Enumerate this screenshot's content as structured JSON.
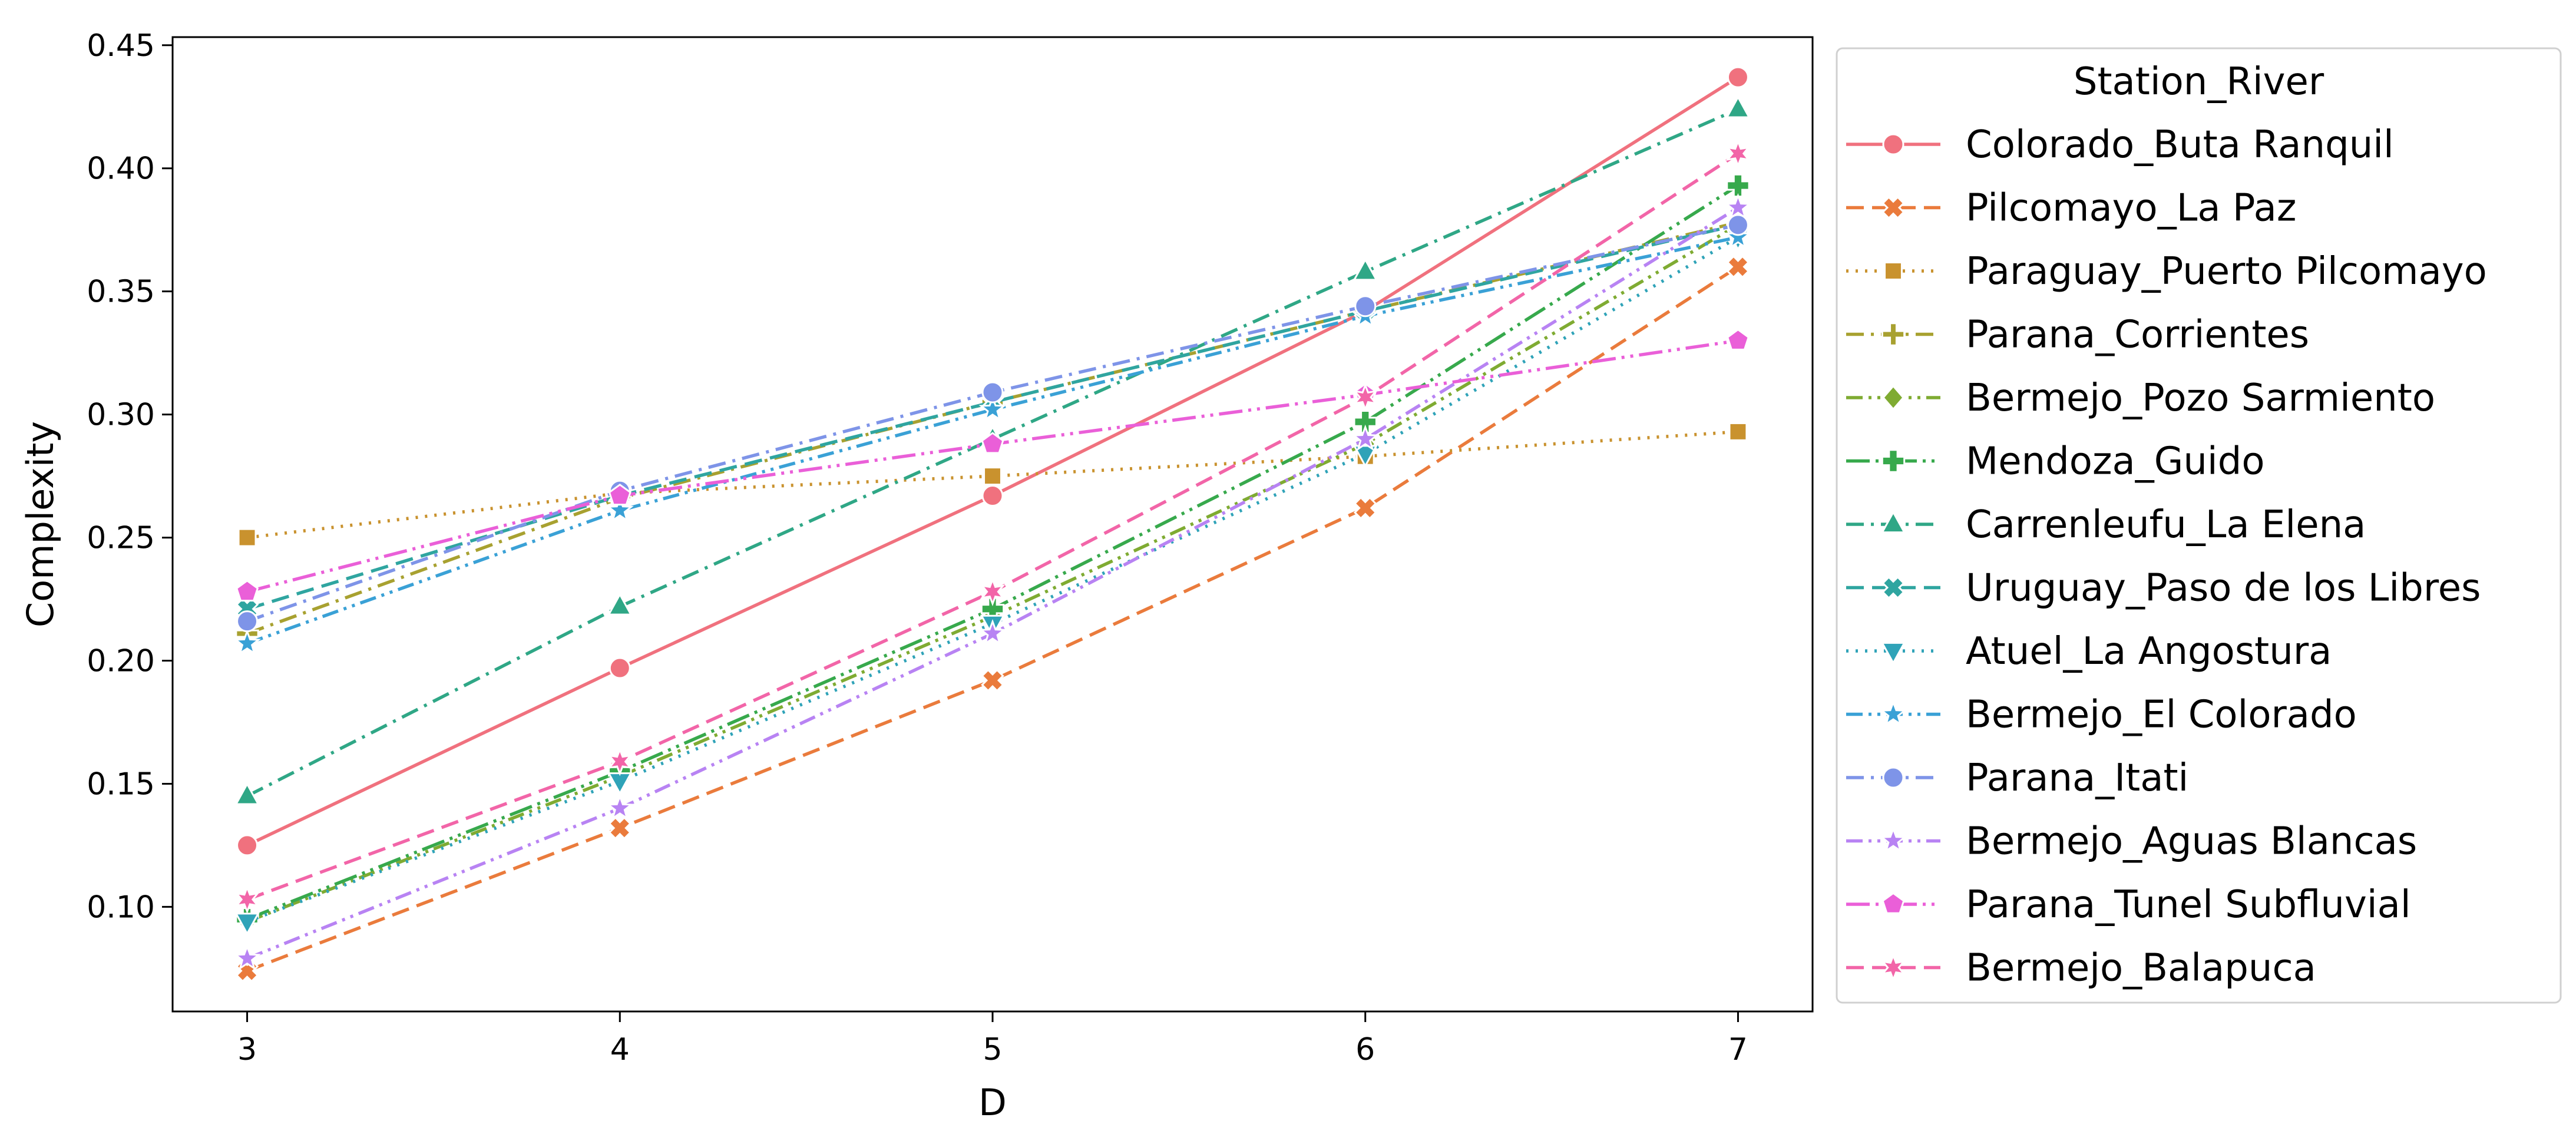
{
  "chart_data": {
    "type": "line",
    "xlabel": "D",
    "ylabel": "Complexity",
    "x": [
      3,
      4,
      5,
      6,
      7
    ],
    "xlim": [
      2.8,
      7.2
    ],
    "ylim": [
      0.0575,
      0.4533
    ],
    "x_ticks": [
      "3",
      "4",
      "5",
      "6",
      "7"
    ],
    "y_ticks": [
      "0.10",
      "0.15",
      "0.20",
      "0.25",
      "0.30",
      "0.35",
      "0.40",
      "0.45"
    ],
    "legend_title": "Station_River",
    "legend_position": "outside-right",
    "grid": false,
    "series": [
      {
        "name": "Colorado_Buta Ranquil",
        "color": "#f0717e",
        "dash": "solid",
        "marker": "circle",
        "values": [
          0.125,
          0.197,
          0.267,
          0.342,
          0.437
        ]
      },
      {
        "name": "Pilcomayo_La Paz",
        "color": "#ea7b3c",
        "dash": "dashed",
        "marker": "x",
        "values": [
          0.074,
          0.132,
          0.192,
          0.262,
          0.36
        ]
      },
      {
        "name": "Paraguay_Puerto Pilcomayo",
        "color": "#c9922e",
        "dash": "dotted",
        "marker": "square",
        "values": [
          0.25,
          0.268,
          0.275,
          0.283,
          0.293
        ]
      },
      {
        "name": "Parana_Corrientes",
        "color": "#a8a130",
        "dash": "dashdot",
        "marker": "plus",
        "values": [
          0.211,
          0.266,
          0.305,
          0.342,
          0.378
        ]
      },
      {
        "name": "Bermejo_Pozo Sarmiento",
        "color": "#7fab32",
        "dash": "dashdotdot",
        "marker": "diamond",
        "values": [
          0.094,
          0.153,
          0.218,
          0.288,
          0.377
        ]
      },
      {
        "name": "Mendoza_Guido",
        "color": "#37a94c",
        "dash": "dashdotlong",
        "marker": "plusfilled",
        "values": [
          0.095,
          0.155,
          0.221,
          0.297,
          0.393
        ]
      },
      {
        "name": "Carrenleufu_La Elena",
        "color": "#2fa786",
        "dash": "dashdot",
        "marker": "triangle-up",
        "values": [
          0.145,
          0.222,
          0.29,
          0.358,
          0.424
        ]
      },
      {
        "name": "Uruguay_Paso de los Libres",
        "color": "#2fa5a0",
        "dash": "dashed",
        "marker": "x",
        "values": [
          0.221,
          0.267,
          0.305,
          0.342,
          0.377
        ]
      },
      {
        "name": "Atuel_La Angostura",
        "color": "#2fa3b8",
        "dash": "dotted",
        "marker": "triangle-down",
        "values": [
          0.094,
          0.151,
          0.215,
          0.284,
          0.372
        ]
      },
      {
        "name": "Bermejo_El Colorado",
        "color": "#3aa1d6",
        "dash": "dashdotdot",
        "marker": "star",
        "values": [
          0.207,
          0.261,
          0.302,
          0.34,
          0.372
        ]
      },
      {
        "name": "Parana_Itati",
        "color": "#7e94e8",
        "dash": "dashdot",
        "marker": "circle",
        "values": [
          0.216,
          0.269,
          0.309,
          0.344,
          0.377
        ]
      },
      {
        "name": "Bermejo_Aguas Blancas",
        "color": "#b883f3",
        "dash": "dashdotdot",
        "marker": "star",
        "values": [
          0.079,
          0.14,
          0.211,
          0.29,
          0.384
        ]
      },
      {
        "name": "Parana_Tunel Subfluvial",
        "color": "#ea5fd8",
        "dash": "dashdotlong",
        "marker": "pentagon",
        "values": [
          0.228,
          0.267,
          0.288,
          0.308,
          0.33
        ]
      },
      {
        "name": "Bermejo_Balapuca",
        "color": "#f265a8",
        "dash": "dashed",
        "marker": "asterisk",
        "values": [
          0.103,
          0.159,
          0.228,
          0.307,
          0.406
        ]
      }
    ]
  }
}
